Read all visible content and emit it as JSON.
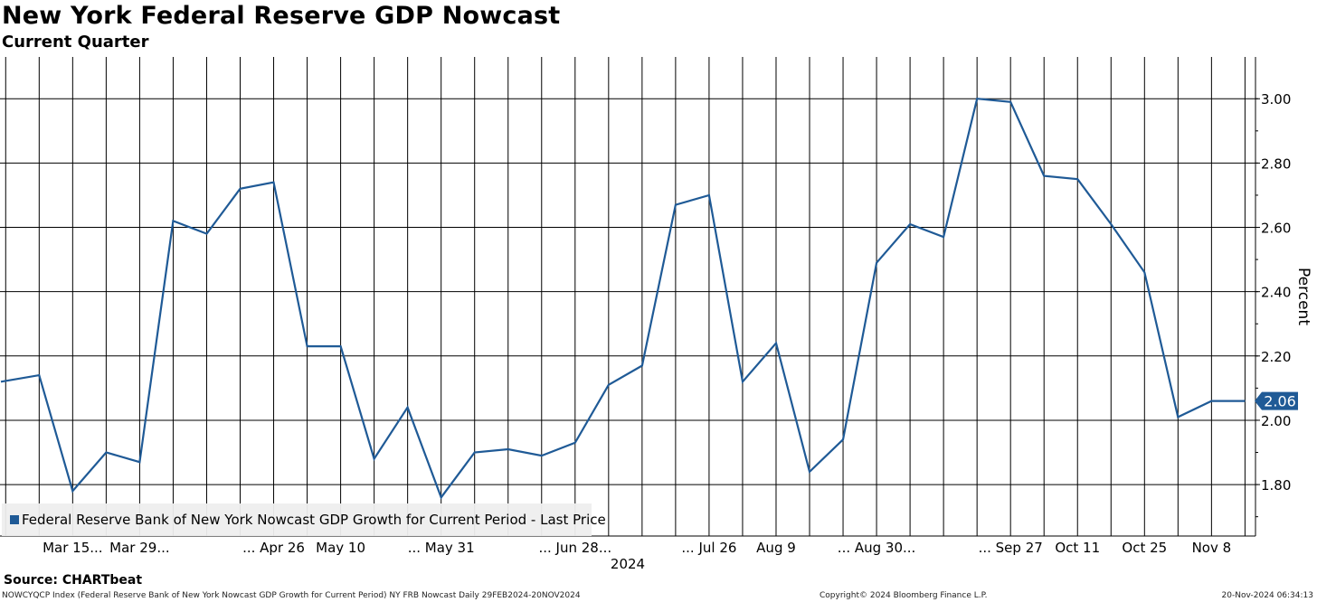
{
  "header": {
    "title": "New York Federal Reserve GDP Nowcast",
    "subtitle": "Current Quarter"
  },
  "footer": {
    "source": "Source: CHARTbeat",
    "index_info": "NOWCYQCP Index (Federal Reserve Bank of New York Nowcast GDP Growth for Current Period) NY FRB Nowcast  Daily 29FEB2024-20NOV2024",
    "copyright": "Copyright© 2024 Bloomberg Finance L.P.",
    "timestamp": "20-Nov-2024 06:34:13"
  },
  "colors": {
    "line": "#1f5a96",
    "grid": "#000000",
    "badge": "#1f5a96"
  },
  "chart_data": {
    "type": "line",
    "title": "New York Federal Reserve GDP Nowcast",
    "subtitle": "Current Quarter",
    "ylabel": "Percent",
    "xlabel": "2024",
    "ylim": [
      1.64,
      3.13
    ],
    "yticks": [
      "1.80",
      "2.00",
      "2.20",
      "2.40",
      "2.60",
      "2.80",
      "3.00"
    ],
    "yticks_values": [
      1.8,
      2.0,
      2.2,
      2.4,
      2.6,
      2.8,
      3.0
    ],
    "x_tick_labels": [
      "Mar 15",
      "Mar 29",
      "Apr 26",
      "May 10",
      "May 31",
      "Jun 28",
      "Jul 26",
      "Aug 9",
      "Aug 30",
      "Sep 27",
      "Oct 11",
      "Oct 25",
      "Nov 8"
    ],
    "x_tick_label_text": [
      "Mar 15...",
      "Mar 29...",
      "... Apr 26",
      "May 10",
      "... May 31",
      "... Jun 28...",
      "... Jul 26",
      "Aug 9",
      "... Aug 30...",
      "... Sep 27",
      "Oct 11",
      "Oct 25",
      "Nov 8"
    ],
    "x_tick_dates": [
      "2024-03-15",
      "2024-03-29",
      "2024-04-26",
      "2024-05-10",
      "2024-05-31",
      "2024-06-28",
      "2024-07-26",
      "2024-08-09",
      "2024-08-30",
      "2024-09-27",
      "2024-10-11",
      "2024-10-25",
      "2024-11-08"
    ],
    "xlim": [
      "2024-02-29",
      "2024-11-20"
    ],
    "grid": true,
    "legend_position": "bottom-left",
    "last_value_label": "2.06",
    "series": [
      {
        "name": "Federal Reserve Bank of New York Nowcast GDP Growth for Current Period - Last Price",
        "x": [
          "2024-02-29",
          "2024-03-08",
          "2024-03-15",
          "2024-03-22",
          "2024-03-29",
          "2024-04-05",
          "2024-04-12",
          "2024-04-19",
          "2024-04-26",
          "2024-05-03",
          "2024-05-10",
          "2024-05-17",
          "2024-05-24",
          "2024-05-31",
          "2024-06-07",
          "2024-06-14",
          "2024-06-21",
          "2024-06-28",
          "2024-07-05",
          "2024-07-12",
          "2024-07-19",
          "2024-07-26",
          "2024-08-02",
          "2024-08-09",
          "2024-08-16",
          "2024-08-23",
          "2024-08-30",
          "2024-09-06",
          "2024-09-13",
          "2024-09-20",
          "2024-09-27",
          "2024-10-04",
          "2024-10-11",
          "2024-10-18",
          "2024-10-25",
          "2024-11-01",
          "2024-11-08",
          "2024-11-15"
        ],
        "values": [
          2.12,
          2.14,
          1.78,
          1.9,
          1.87,
          2.62,
          2.58,
          2.72,
          2.74,
          2.23,
          2.23,
          1.88,
          2.04,
          1.76,
          1.9,
          1.91,
          1.89,
          1.93,
          2.11,
          2.17,
          2.67,
          2.7,
          2.12,
          2.24,
          1.84,
          1.94,
          2.49,
          2.61,
          2.57,
          3.0,
          2.99,
          2.76,
          2.75,
          2.61,
          2.46,
          2.01,
          2.06,
          2.06
        ]
      }
    ]
  }
}
